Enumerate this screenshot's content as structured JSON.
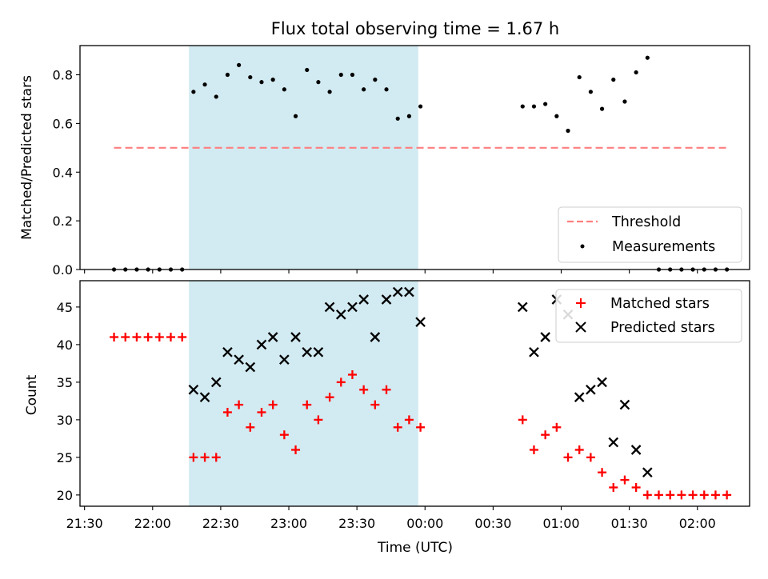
{
  "chart_data": [
    {
      "type": "scatter",
      "title": "Flux total observing time = 1.67 h",
      "xlabel": "",
      "ylabel": "Matched/Predicted stars",
      "ylim": [
        0,
        0.92
      ],
      "yticks": [
        "0.0",
        "0.2",
        "0.4",
        "0.6",
        "0.8"
      ],
      "legend_position": "lower-right",
      "highlight_span": {
        "start": "22:16",
        "end": "23:57",
        "color": "#add8e6"
      },
      "series": [
        {
          "name": "Threshold",
          "kind": "dashed-line",
          "color": "#ff7f7f",
          "x": [
            "21:43",
            "02:13"
          ],
          "y": [
            0.5,
            0.5
          ]
        },
        {
          "name": "Measurements",
          "kind": "dots",
          "color": "#000000",
          "x": [
            "21:43",
            "21:48",
            "21:53",
            "21:58",
            "22:03",
            "22:08",
            "22:13",
            "22:18",
            "22:23",
            "22:28",
            "22:33",
            "22:38",
            "22:43",
            "22:48",
            "22:53",
            "22:58",
            "23:03",
            "23:08",
            "23:13",
            "23:18",
            "23:23",
            "23:28",
            "23:33",
            "23:38",
            "23:43",
            "23:48",
            "23:53",
            "23:58",
            "00:43",
            "00:48",
            "00:53",
            "00:58",
            "01:03",
            "01:08",
            "01:13",
            "01:18",
            "01:23",
            "01:28",
            "01:33",
            "01:38",
            "01:43",
            "01:48",
            "01:53",
            "01:58",
            "02:03",
            "02:08",
            "02:13"
          ],
          "y": [
            0,
            0,
            0,
            0,
            0,
            0,
            0,
            0.73,
            0.76,
            0.71,
            0.8,
            0.84,
            0.79,
            0.77,
            0.78,
            0.74,
            0.63,
            0.82,
            0.77,
            0.73,
            0.8,
            0.8,
            0.74,
            0.78,
            0.74,
            0.62,
            0.63,
            0.67,
            0.67,
            0.67,
            0.68,
            0.63,
            0.57,
            0.79,
            0.73,
            0.66,
            0.78,
            0.69,
            0.81,
            0.87,
            0,
            0,
            0,
            0,
            0,
            0,
            0
          ]
        }
      ]
    },
    {
      "type": "scatter",
      "title": "",
      "xlabel": "Time (UTC)",
      "ylabel": "Count",
      "ylim": [
        18.5,
        48.5
      ],
      "yticks": [
        "20",
        "25",
        "30",
        "35",
        "40",
        "45"
      ],
      "xticks": [
        "21:30",
        "22:00",
        "22:30",
        "23:00",
        "23:30",
        "00:00",
        "00:30",
        "01:00",
        "01:30",
        "02:00"
      ],
      "legend_position": "upper-right",
      "highlight_span": {
        "start": "22:16",
        "end": "23:57",
        "color": "#add8e6"
      },
      "series": [
        {
          "name": "Matched stars",
          "marker": "+",
          "color": "#ff0000",
          "x": [
            "21:43",
            "21:48",
            "21:53",
            "21:58",
            "22:03",
            "22:08",
            "22:13",
            "22:18",
            "22:23",
            "22:28",
            "22:33",
            "22:38",
            "22:43",
            "22:48",
            "22:53",
            "22:58",
            "23:03",
            "23:08",
            "23:13",
            "23:18",
            "23:23",
            "23:28",
            "23:33",
            "23:38",
            "23:43",
            "23:48",
            "23:53",
            "23:58",
            "00:43",
            "00:48",
            "00:53",
            "00:58",
            "01:03",
            "01:08",
            "01:13",
            "01:18",
            "01:23",
            "01:28",
            "01:33",
            "01:38",
            "01:43",
            "01:48",
            "01:53",
            "01:58",
            "02:03",
            "02:08",
            "02:13"
          ],
          "y": [
            41,
            41,
            41,
            41,
            41,
            41,
            41,
            25,
            25,
            25,
            31,
            32,
            29,
            31,
            32,
            28,
            26,
            32,
            30,
            33,
            35,
            36,
            34,
            32,
            34,
            29,
            30,
            29,
            30,
            26,
            28,
            29,
            25,
            26,
            25,
            23,
            21,
            22,
            21,
            20,
            20,
            20,
            20,
            20,
            20,
            20,
            20
          ]
        },
        {
          "name": "Predicted stars",
          "marker": "x",
          "color": "#000000",
          "x": [
            "22:18",
            "22:23",
            "22:28",
            "22:33",
            "22:38",
            "22:43",
            "22:48",
            "22:53",
            "22:58",
            "23:03",
            "23:08",
            "23:13",
            "23:18",
            "23:23",
            "23:28",
            "23:33",
            "23:38",
            "23:43",
            "23:48",
            "23:53",
            "23:58",
            "00:43",
            "00:48",
            "00:53",
            "00:58",
            "01:03",
            "01:08",
            "01:13",
            "01:18",
            "01:23",
            "01:28",
            "01:33",
            "01:38"
          ],
          "y": [
            34,
            33,
            35,
            39,
            38,
            37,
            40,
            41,
            38,
            41,
            39,
            39,
            45,
            44,
            45,
            46,
            41,
            46,
            47,
            47,
            43,
            45,
            39,
            41,
            46,
            44,
            33,
            34,
            35,
            27,
            32,
            26,
            23
          ]
        }
      ]
    }
  ]
}
